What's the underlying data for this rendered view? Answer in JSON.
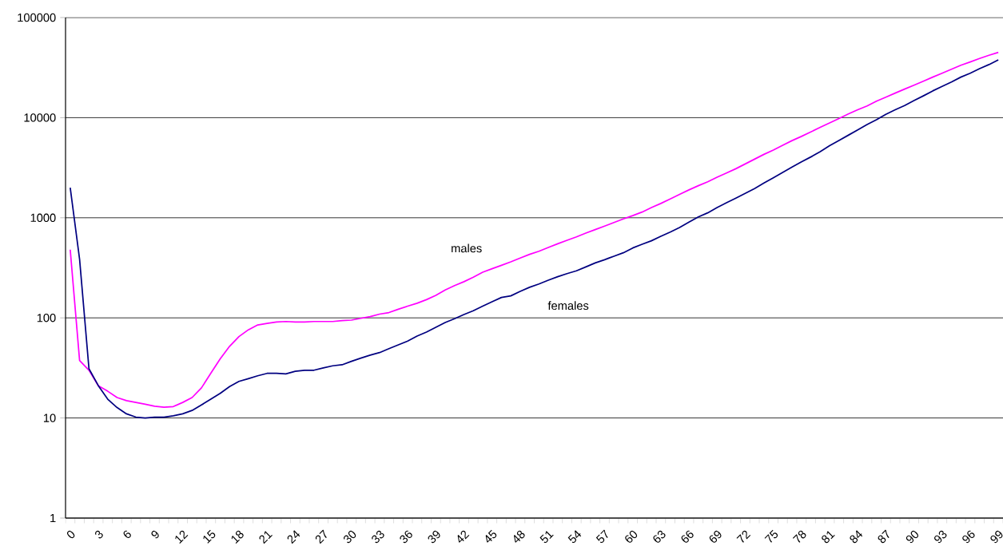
{
  "chart_data": {
    "type": "line",
    "categories": [
      "0",
      null,
      null,
      "3",
      null,
      null,
      "6",
      null,
      null,
      "9",
      null,
      null,
      "12",
      null,
      null,
      "15",
      null,
      null,
      "18",
      null,
      null,
      "21",
      null,
      null,
      "24",
      null,
      null,
      "27",
      null,
      null,
      "30",
      null,
      null,
      "33",
      null,
      null,
      "36",
      null,
      null,
      "39",
      null,
      null,
      "42",
      null,
      null,
      "45",
      null,
      null,
      "48",
      null,
      null,
      "51",
      null,
      null,
      "54",
      null,
      null,
      "57",
      null,
      null,
      "60",
      null,
      null,
      "63",
      null,
      null,
      "66",
      null,
      null,
      "69",
      null,
      null,
      "72",
      null,
      null,
      "75",
      null,
      null,
      "78",
      null,
      null,
      "81",
      null,
      null,
      "84",
      null,
      null,
      "87",
      null,
      null,
      "90",
      null,
      null,
      "93",
      null,
      null,
      "96",
      null,
      null,
      "99"
    ],
    "series": [
      {
        "name": "males",
        "color": "#ff00ff",
        "values": [
          480,
          37.5,
          30,
          21,
          18.5,
          16,
          14.9,
          14.3,
          13.7,
          13.1,
          12.8,
          13,
          14.3,
          16,
          20,
          28,
          39,
          52,
          65,
          76,
          85,
          88,
          91,
          92,
          91,
          91,
          92,
          92,
          92,
          94,
          95,
          99,
          103,
          109,
          113,
          122,
          131,
          140,
          152,
          168,
          190,
          210,
          230,
          255,
          286,
          310,
          335,
          363,
          396,
          431,
          463,
          505,
          550,
          596,
          645,
          703,
          761,
          825,
          897,
          973,
          1050,
          1140,
          1265,
          1390,
          1540,
          1710,
          1900,
          2090,
          2290,
          2540,
          2800,
          3090,
          3450,
          3850,
          4300,
          4750,
          5300,
          5900,
          6500,
          7200,
          8000,
          8850,
          9800,
          10900,
          12000,
          13100,
          14600,
          16000,
          17600,
          19300,
          21100,
          23100,
          25400,
          27800,
          30500,
          33400,
          36000,
          39000,
          42000,
          44900
        ]
      },
      {
        "name": "females",
        "color": "#000080",
        "values": [
          2000,
          384,
          31,
          21,
          15.4,
          12.7,
          11,
          10.2,
          10,
          10.2,
          10.2,
          10.5,
          11,
          11.9,
          13.5,
          15.4,
          17.6,
          20.6,
          23.2,
          24.7,
          26.4,
          27.9,
          28,
          27.6,
          29.3,
          30,
          30,
          31.6,
          33.2,
          34,
          36.8,
          39.6,
          42.4,
          45,
          49.3,
          53.8,
          58.6,
          65.8,
          72.1,
          80.5,
          90,
          98,
          108,
          118,
          131,
          145,
          160,
          166,
          184,
          202,
          218,
          238,
          258,
          277,
          295,
          323,
          354,
          381,
          413,
          447,
          499,
          543,
          589,
          653,
          720,
          800,
          904,
          1020,
          1120,
          1265,
          1410,
          1570,
          1750,
          1960,
          2220,
          2510,
          2840,
          3210,
          3620,
          4050,
          4570,
          5240,
          5920,
          6680,
          7550,
          8540,
          9530,
          10800,
          12000,
          13200,
          14800,
          16500,
          18500,
          20500,
          22700,
          25400,
          27800,
          30900,
          33900,
          37800
        ]
      }
    ],
    "ylim": [
      1,
      100000
    ],
    "yticks": [
      1,
      10,
      100,
      1000,
      10000,
      100000
    ],
    "log": "y",
    "grid": "y"
  }
}
